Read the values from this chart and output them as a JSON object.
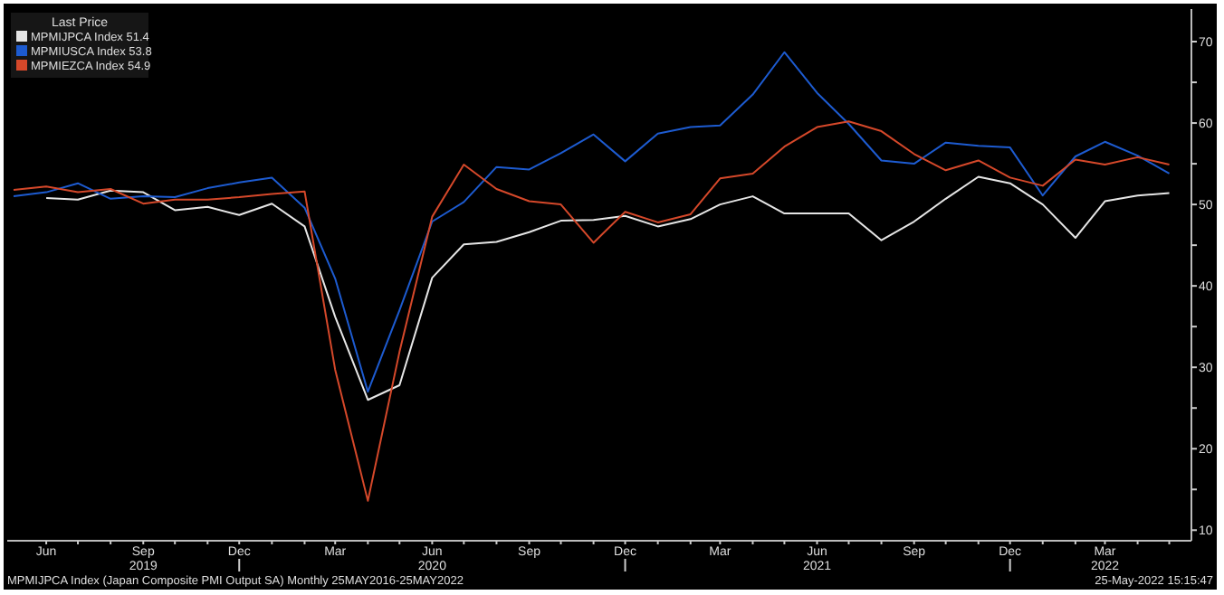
{
  "chart_data": {
    "type": "line",
    "legend_title": "Last Price",
    "legend": "top left",
    "grid": false,
    "marker": "none",
    "line_style": "solid",
    "x": [
      "2019-05",
      "2019-06",
      "2019-07",
      "2019-08",
      "2019-09",
      "2019-10",
      "2019-11",
      "2019-12",
      "2020-01",
      "2020-02",
      "2020-03",
      "2020-04",
      "2020-05",
      "2020-06",
      "2020-07",
      "2020-08",
      "2020-09",
      "2020-10",
      "2020-11",
      "2020-12",
      "2021-01",
      "2021-02",
      "2021-03",
      "2021-04",
      "2021-05",
      "2021-06",
      "2021-07",
      "2021-08",
      "2021-09",
      "2021-10",
      "2021-11",
      "2021-12",
      "2022-01",
      "2022-02",
      "2022-03",
      "2022-04",
      "2022-05"
    ],
    "series": [
      {
        "name": "MPMIJPCA Index 51.4",
        "color": "#e6e6e6",
        "values": [
          null,
          50.8,
          50.6,
          51.7,
          51.5,
          49.3,
          49.7,
          48.7,
          50.1,
          47.3,
          36.2,
          26.0,
          27.8,
          41.0,
          45.1,
          45.4,
          46.6,
          48.0,
          48.1,
          48.6,
          47.3,
          48.2,
          50.0,
          51.0,
          48.9,
          48.9,
          48.9,
          45.6,
          47.9,
          50.7,
          53.4,
          52.6,
          50.0,
          45.9,
          50.4,
          51.1,
          51.4
        ]
      },
      {
        "name": "MPMIUSCA Index 53.8",
        "color": "#1d5bd0",
        "values": [
          51.0,
          51.5,
          52.6,
          50.7,
          51.0,
          50.9,
          52.0,
          52.7,
          53.3,
          49.6,
          40.9,
          27.0,
          37.0,
          47.9,
          50.3,
          54.6,
          54.3,
          56.3,
          58.6,
          55.3,
          58.7,
          59.5,
          59.7,
          63.5,
          68.7,
          63.7,
          59.9,
          55.4,
          55.0,
          57.6,
          57.2,
          57.0,
          51.1,
          55.9,
          57.7,
          56.0,
          53.8
        ]
      },
      {
        "name": "MPMIEZCA Index 54.9",
        "color": "#d5482a",
        "values": [
          51.8,
          52.2,
          51.5,
          51.9,
          50.1,
          50.6,
          50.6,
          50.9,
          51.3,
          51.6,
          29.7,
          13.6,
          31.9,
          48.5,
          54.9,
          51.9,
          50.4,
          50.0,
          45.3,
          49.1,
          47.8,
          48.8,
          53.2,
          53.8,
          57.1,
          59.5,
          60.2,
          59.0,
          56.2,
          54.2,
          55.4,
          53.3,
          52.3,
          55.5,
          54.9,
          55.8,
          54.9
        ]
      }
    ],
    "xlim": [
      "2019-04-25",
      "2022-05-22"
    ],
    "xticks": [
      {
        "value": "2019-06",
        "label": "Jun"
      },
      {
        "value": "2019-07",
        "label": null
      },
      {
        "value": "2019-08",
        "label": null
      },
      {
        "value": "2019-09",
        "label": "Sep\n2019"
      },
      {
        "value": "2019-10",
        "label": null
      },
      {
        "value": "2019-11",
        "label": null
      },
      {
        "value": "2019-12",
        "label": "Dec"
      },
      {
        "value": "2020-01",
        "label": null
      },
      {
        "value": "2020-02",
        "label": null
      },
      {
        "value": "2020-03",
        "label": "Mar"
      },
      {
        "value": "2020-04",
        "label": null
      },
      {
        "value": "2020-05",
        "label": null
      },
      {
        "value": "2020-06",
        "label": "Jun\n2020"
      },
      {
        "value": "2020-07",
        "label": null
      },
      {
        "value": "2020-08",
        "label": null
      },
      {
        "value": "2020-09",
        "label": "Sep"
      },
      {
        "value": "2020-10",
        "label": null
      },
      {
        "value": "2020-11",
        "label": null
      },
      {
        "value": "2020-12",
        "label": "Dec"
      },
      {
        "value": "2021-01",
        "label": null
      },
      {
        "value": "2021-02",
        "label": null
      },
      {
        "value": "2021-03",
        "label": "Mar"
      },
      {
        "value": "2021-04",
        "label": null
      },
      {
        "value": "2021-05",
        "label": null
      },
      {
        "value": "2021-06",
        "label": "Jun\n2021"
      },
      {
        "value": "2021-07",
        "label": null
      },
      {
        "value": "2021-08",
        "label": null
      },
      {
        "value": "2021-09",
        "label": "Sep"
      },
      {
        "value": "2021-10",
        "label": null
      },
      {
        "value": "2021-11",
        "label": null
      },
      {
        "value": "2021-12",
        "label": "Dec"
      },
      {
        "value": "2022-01",
        "label": null
      },
      {
        "value": "2022-02",
        "label": null
      },
      {
        "value": "2022-03",
        "label": "Mar\n2022"
      },
      {
        "value": "2022-04",
        "label": null
      },
      {
        "value": "2022-05",
        "label": null
      }
    ],
    "ylim": [
      8.7,
      74
    ],
    "yticks": [
      10,
      {
        "value": 15,
        "label": null
      },
      20,
      {
        "value": 25,
        "label": null
      },
      30,
      {
        "value": 35,
        "label": null
      },
      40,
      {
        "value": 45,
        "label": null
      },
      50,
      {
        "value": 55,
        "label": null
      },
      60,
      {
        "value": 65,
        "label": null
      },
      70
    ],
    "annotations": [
      "MPMIJPCA Index (Japan Composite PMI Output SA)  Monthly 25MAY2016-25MAY2022",
      "25-May-2022 15:15:47"
    ]
  }
}
